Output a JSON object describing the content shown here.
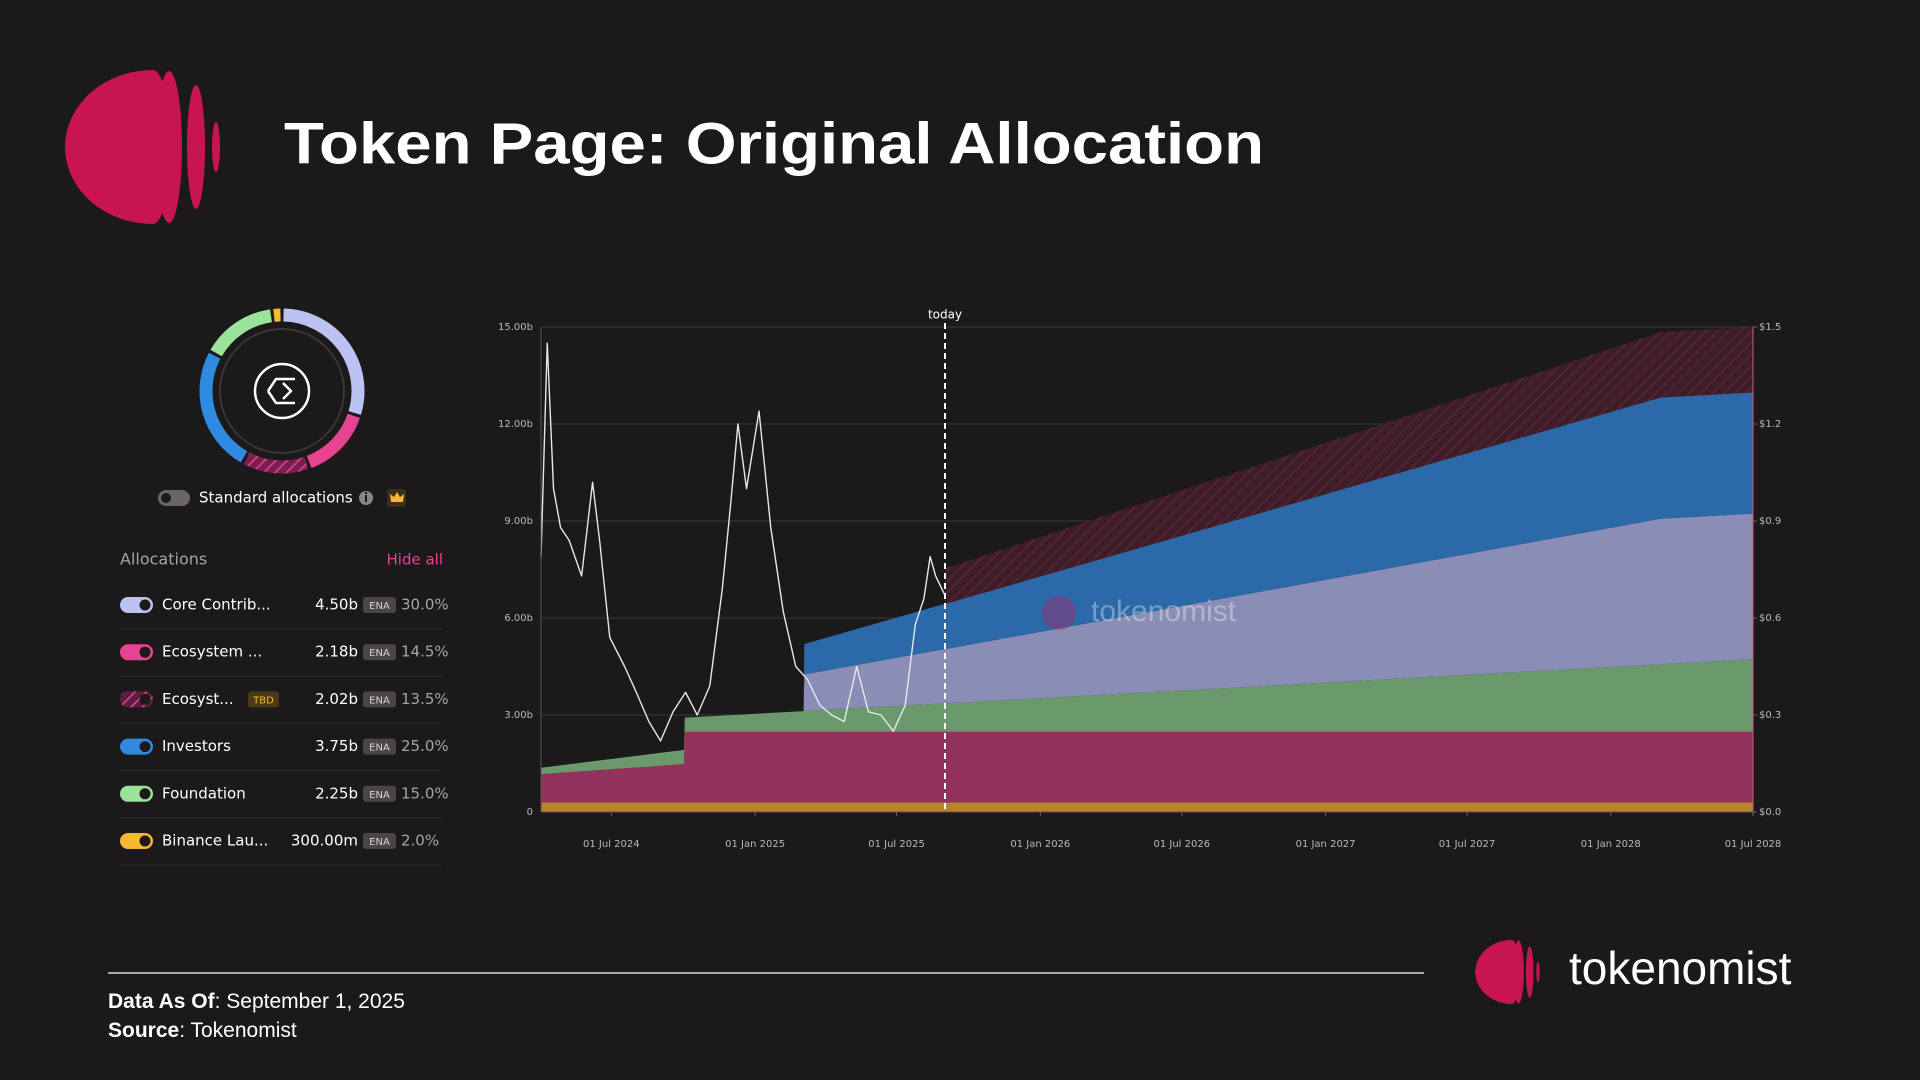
{
  "header": {
    "title": "Token Page: Original Allocation"
  },
  "allocations": {
    "toggle_label": "Standard allocations",
    "heading": "Allocations",
    "action": "Hide all",
    "rows": [
      {
        "name": "Core Contrib...",
        "amount": "4.50b",
        "token": "ENA",
        "percent": 30,
        "percent_label": "30.0%",
        "color": "#b9c2f0"
      },
      {
        "name": "Ecosystem ...",
        "amount": "2.18b",
        "token": "ENA",
        "percent": 14.5,
        "percent_label": "14.5%",
        "color": "#e84393"
      },
      {
        "name": "Ecosyst...",
        "tag": "TBD",
        "amount": "2.02b",
        "token": "ENA",
        "percent": 13.5,
        "percent_label": "13.5%",
        "color": "#e84393",
        "pattern": "hatched"
      },
      {
        "name": "Investors",
        "amount": "3.75b",
        "token": "ENA",
        "percent": 25,
        "percent_label": "25.0%",
        "color": "#2f8be0"
      },
      {
        "name": "Foundation",
        "amount": "2.25b",
        "token": "ENA",
        "percent": 15,
        "percent_label": "15.0%",
        "color": "#9be39b"
      },
      {
        "name": "Binance Lau...",
        "amount": "300.00m",
        "token": "ENA",
        "percent": 2,
        "percent_label": "2.0%",
        "color": "#f7b733"
      }
    ]
  },
  "chart_data": {
    "type": "area",
    "stacked": true,
    "grid": true,
    "x": [
      "2024-04-02",
      "2024-10-02",
      "2024-10-03",
      "2025-03-04",
      "2025-03-05",
      "2025-09-01",
      "2025-09-02",
      "2028-03-05",
      "2028-07-01"
    ],
    "series": [
      {
        "color": "#b8822f",
        "values": [
          0.3,
          0.3,
          0.3,
          0.3,
          0.3,
          0.3,
          0.3,
          0.3,
          0.3
        ]
      },
      {
        "color": "#93325f",
        "values": [
          0.87,
          1.18,
          2.18,
          2.18,
          2.18,
          2.18,
          2.18,
          2.18,
          2.18
        ]
      },
      {
        "color": "#6a9a6c",
        "values": [
          0.2,
          0.44,
          0.44,
          0.64,
          0.65,
          0.88,
          0.88,
          2.09,
          2.25
        ]
      },
      {
        "color": "#8a8db5",
        "values": [
          0,
          0,
          0,
          0,
          1.125,
          1.68,
          1.68,
          4.5,
          4.5
        ]
      },
      {
        "color": "#2c69a8",
        "values": [
          0,
          0,
          0,
          0,
          0.94,
          1.4,
          1.4,
          3.75,
          3.75
        ]
      },
      {
        "color": "#3d1d28",
        "pattern": "hatched",
        "values": [
          0,
          0,
          0,
          0,
          0,
          0,
          1.1,
          2.02,
          2.02
        ]
      }
    ],
    "price": {
      "axis": "y2",
      "color": "#e8e8e8",
      "x": [
        "2024-04-02",
        "2024-04-10",
        "2024-04-18",
        "2024-04-27",
        "2024-05-08",
        "2024-05-24",
        "2024-06-07",
        "2024-06-16",
        "2024-06-29",
        "2024-07-18",
        "2024-08-02",
        "2024-08-18",
        "2024-09-02",
        "2024-09-18",
        "2024-10-04",
        "2024-10-19",
        "2024-11-04",
        "2024-11-20",
        "2024-12-01",
        "2024-12-10",
        "2024-12-21",
        "2025-01-06",
        "2025-01-21",
        "2025-02-06",
        "2025-02-22",
        "2025-03-09",
        "2025-03-25",
        "2025-04-09",
        "2025-04-25",
        "2025-05-11",
        "2025-05-26",
        "2025-06-11",
        "2025-06-27",
        "2025-07-12",
        "2025-07-25",
        "2025-08-05",
        "2025-08-13",
        "2025-08-20",
        "2025-08-28",
        "2025-09-01"
      ],
      "values": [
        0.79,
        1.45,
        1.0,
        0.88,
        0.84,
        0.73,
        1.02,
        0.84,
        0.54,
        0.45,
        0.37,
        0.28,
        0.22,
        0.31,
        0.37,
        0.3,
        0.39,
        0.69,
        0.96,
        1.2,
        1.0,
        1.24,
        0.88,
        0.62,
        0.45,
        0.41,
        0.33,
        0.3,
        0.28,
        0.45,
        0.31,
        0.3,
        0.25,
        0.33,
        0.58,
        0.66,
        0.79,
        0.73,
        0.69,
        0.67
      ]
    },
    "marker": {
      "label": "today",
      "x": "2025-09-01"
    },
    "watermark": "tokenomist",
    "xlim": [
      "2024-04-02",
      "2028-07-01"
    ],
    "xticks": [
      {
        "value": "2024-07-01",
        "label": "01 Jul 2024"
      },
      {
        "value": "2025-01-01",
        "label": "01 Jan 2025"
      },
      {
        "value": "2025-07-01",
        "label": "01 Jul 2025"
      },
      {
        "value": "2026-01-01",
        "label": "01 Jan 2026"
      },
      {
        "value": "2026-07-01",
        "label": "01 Jul 2026"
      },
      {
        "value": "2027-01-01",
        "label": "01 Jan 2027"
      },
      {
        "value": "2027-07-01",
        "label": "01 Jul 2027"
      },
      {
        "value": "2028-01-01",
        "label": "01 Jan 2028"
      },
      {
        "value": "2028-07-01",
        "label": "01 Jul 2028"
      }
    ],
    "ylim": [
      0,
      15
    ],
    "yticks": [
      0,
      {
        "value": 3,
        "label": "3.00b"
      },
      {
        "value": 6,
        "label": "6.00b"
      },
      {
        "value": 9,
        "label": "9.00b"
      },
      {
        "value": 12,
        "label": "12.00b"
      },
      {
        "value": 15,
        "label": "15.00b"
      }
    ],
    "y2lim": [
      0,
      1.5
    ],
    "y2ticks": [
      {
        "value": 0,
        "label": "$0.0"
      },
      {
        "value": 0.3,
        "label": "$0.3"
      },
      {
        "value": 0.6,
        "label": "$0.6"
      },
      {
        "value": 0.9,
        "label": "$0.9"
      },
      {
        "value": 1.2,
        "label": "$1.2"
      },
      {
        "value": 1.5,
        "label": "$1.5"
      }
    ]
  },
  "footer": {
    "date_label": "Data As Of",
    "date": ": September 1, 2025",
    "source_label": "Source",
    "source": ": Tokenomist"
  },
  "brand": {
    "name": "tokenomist"
  }
}
